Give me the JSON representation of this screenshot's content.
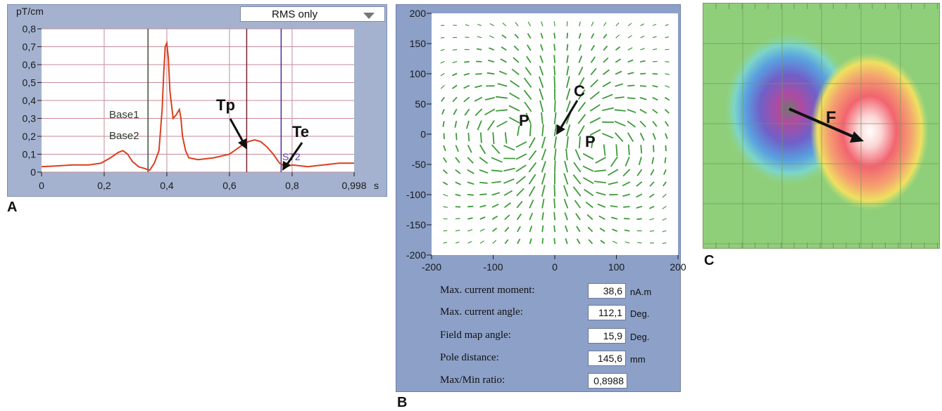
{
  "panel_labels": {
    "a": "A",
    "b": "B",
    "c": "C"
  },
  "panel_a": {
    "dropdown_value": "RMS only",
    "y_unit": "pT/cm",
    "x_unit": "s",
    "y_ticks": [
      "0,8",
      "0,7",
      "0,6",
      "0,5",
      "0,4",
      "0,3",
      "0,2",
      "0,1",
      "0"
    ],
    "x_ticks": [
      "0",
      "0,2",
      "0,4",
      "0,6",
      "0,8",
      "0,998"
    ],
    "base1": "Base1",
    "base2": "Base2",
    "st2": "ST2",
    "tp": "Tp",
    "te": "Te",
    "colors": {
      "trace": "#d9401e",
      "grid": "#c58a9a",
      "base_line": "#3e4e3e",
      "tp_line": "#7a2430",
      "te_line": "#4b2a9a"
    }
  },
  "panel_b": {
    "y_ticks": [
      "200",
      "150",
      "100",
      "50",
      "0",
      "-50",
      "-100",
      "-150",
      "-200"
    ],
    "x_ticks": [
      "-200",
      "-100",
      "0",
      "100",
      "200"
    ],
    "p_left": "P",
    "p_right": "P",
    "c_label": "C",
    "stats": [
      {
        "label": "Max. current moment:",
        "value": "38,6",
        "unit": "nA.m"
      },
      {
        "label": "Max. current angle:",
        "value": "112,1",
        "unit": "Deg."
      },
      {
        "label": "Field map angle:",
        "value": "15,9",
        "unit": "Deg."
      },
      {
        "label": "Pole distance:",
        "value": "145,6",
        "unit": "mm"
      },
      {
        "label": "Max/Min ratio:",
        "value": "0,8988",
        "unit": ""
      }
    ],
    "colors": {
      "arrow": "#3e9a3a"
    }
  },
  "panel_c": {
    "f_label": "F"
  },
  "chart_data": [
    {
      "type": "line",
      "title": "",
      "xlabel": "s",
      "ylabel": "pT/cm",
      "xlim": [
        0,
        0.998
      ],
      "ylim": [
        0,
        0.8
      ],
      "grid": true,
      "series": [
        {
          "x": [
            0,
            0.05,
            0.1,
            0.15,
            0.19,
            0.22,
            0.245,
            0.26,
            0.275,
            0.29,
            0.31,
            0.33,
            0.345,
            0.36,
            0.375,
            0.385,
            0.39,
            0.395,
            0.4,
            0.405,
            0.41,
            0.42,
            0.43,
            0.44,
            0.445,
            0.45,
            0.46,
            0.47,
            0.5,
            0.55,
            0.6,
            0.64,
            0.66,
            0.68,
            0.7,
            0.72,
            0.74,
            0.76,
            0.78,
            0.8,
            0.85,
            0.9,
            0.95,
            0.998
          ],
          "y": [
            0.03,
            0.035,
            0.04,
            0.04,
            0.05,
            0.08,
            0.11,
            0.12,
            0.1,
            0.06,
            0.03,
            0.02,
            0.01,
            0.05,
            0.12,
            0.35,
            0.55,
            0.7,
            0.72,
            0.63,
            0.45,
            0.3,
            0.32,
            0.35,
            0.3,
            0.2,
            0.12,
            0.08,
            0.07,
            0.08,
            0.1,
            0.15,
            0.17,
            0.18,
            0.17,
            0.14,
            0.1,
            0.05,
            0.03,
            0.04,
            0.03,
            0.04,
            0.05,
            0.05
          ]
        }
      ],
      "vertical_markers": [
        {
          "label": "Base1",
          "x": 0.34
        },
        {
          "label": "Tp",
          "x": 0.655
        },
        {
          "label": "ST2",
          "x": 0.765
        }
      ],
      "annotations": [
        "Tp",
        "Te",
        "Base1",
        "Base2",
        "ST2"
      ]
    },
    {
      "type": "scatter",
      "title": "",
      "xlabel": "",
      "ylabel": "",
      "xlim": [
        -200,
        200
      ],
      "ylim": [
        -200,
        200
      ],
      "description_of_marks": "current arrow map",
      "annotations": [
        "P",
        "P",
        "C"
      ]
    }
  ]
}
